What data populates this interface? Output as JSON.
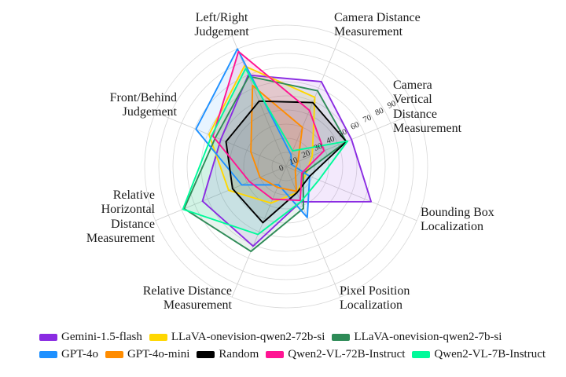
{
  "chart_data": {
    "type": "radar",
    "title": "",
    "r_ticks": [
      0,
      10,
      20,
      30,
      40,
      50,
      60,
      70,
      80,
      90
    ],
    "r_max": 100,
    "grid": true,
    "legend_position": "bottom",
    "axes": [
      {
        "id": "cam_vertical",
        "label": "Camera\nVertical\nDistance\nMeasurement",
        "angle_deg": 22.5
      },
      {
        "id": "cam_distance",
        "label": "Camera Distance\nMeasurement",
        "angle_deg": 67.5
      },
      {
        "id": "left_right",
        "label": "Left/Right\nJudgement",
        "angle_deg": 112.5
      },
      {
        "id": "front_behind",
        "label": "Front/Behind\nJudgement",
        "angle_deg": 157.5
      },
      {
        "id": "rel_horizontal",
        "label": "Relative\nHorizontal\nDistance\nMeasurement",
        "angle_deg": 202.5
      },
      {
        "id": "rel_distance",
        "label": "Relative Distance\nMeasurement",
        "angle_deg": 247.5
      },
      {
        "id": "pixel_position",
        "label": "Pixel Position\nLocalization",
        "angle_deg": 292.5
      },
      {
        "id": "bounding_box",
        "label": "Bounding Box\nLocalization",
        "angle_deg": 337.5
      }
    ],
    "series": [
      {
        "name": "Gemini-1.5-flash",
        "color": "#8A2BE2",
        "values": [
          50,
          65,
          70,
          50,
          64,
          61,
          27,
          65
        ]
      },
      {
        "name": "LLaVA-onevision-qwen2-72b-si",
        "color": "#FFD700",
        "values": [
          20,
          53,
          77,
          59,
          44,
          28,
          20,
          15
        ]
      },
      {
        "name": "LLaVA-onevision-qwen2-7b-si",
        "color": "#2E8B57",
        "values": [
          46,
          58,
          69,
          54,
          78,
          65,
          32,
          13
        ]
      },
      {
        "name": "GPT-4o",
        "color": "#1E90FF",
        "values": [
          4,
          9,
          90,
          69,
          34,
          14,
          39,
          18
        ]
      },
      {
        "name": "GPT-4o-mini",
        "color": "#FF8C00",
        "values": [
          9,
          30,
          62,
          27,
          20,
          16,
          19,
          7
        ]
      },
      {
        "name": "Random",
        "color": "#000000",
        "values": [
          46,
          49,
          50,
          46,
          41,
          43,
          20,
          18
        ]
      },
      {
        "name": "Qwen2-VL-72B-Instruct",
        "color": "#FF1493",
        "values": [
          29,
          43,
          88,
          56,
          28,
          25,
          26,
          12
        ]
      },
      {
        "name": "Qwen2-VL-7B-Instruct",
        "color": "#00FA9A",
        "values": [
          47,
          12,
          75,
          57,
          79,
          52,
          27,
          25
        ]
      }
    ],
    "legend_rows": [
      [
        0,
        1,
        2
      ],
      [
        3,
        4,
        5,
        6,
        7
      ]
    ]
  }
}
